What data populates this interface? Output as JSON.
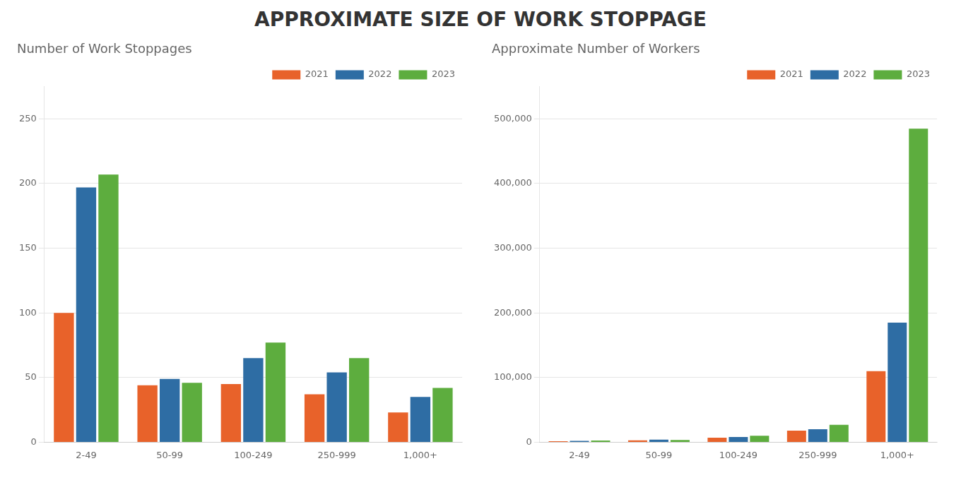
{
  "title": "APPROXIMATE SIZE OF WORK STOPPAGE",
  "chart_data": [
    {
      "type": "bar",
      "subtitle": "Number of Work Stoppages",
      "categories": [
        "2-49",
        "50-99",
        "100-249",
        "250-999",
        "1,000+"
      ],
      "series": [
        {
          "name": "2021",
          "color": "#E8622A",
          "values": [
            100,
            44,
            45,
            37,
            23
          ]
        },
        {
          "name": "2022",
          "color": "#2E6DA4",
          "values": [
            197,
            49,
            65,
            54,
            35
          ]
        },
        {
          "name": "2023",
          "color": "#5DAD3E",
          "values": [
            207,
            46,
            77,
            65,
            42
          ]
        }
      ],
      "ylim": [
        0,
        275
      ],
      "yticks": [
        0,
        50,
        100,
        150,
        200,
        250
      ],
      "grid": true,
      "legend": "upper right"
    },
    {
      "type": "bar",
      "subtitle": "Approximate Number of Workers",
      "categories": [
        "2-49",
        "50-99",
        "100-249",
        "250-999",
        "1,000+"
      ],
      "series": [
        {
          "name": "2021",
          "color": "#E8622A",
          "values": [
            1500,
            3000,
            7000,
            18000,
            110000
          ]
        },
        {
          "name": "2022",
          "color": "#2E6DA4",
          "values": [
            2000,
            4000,
            8000,
            20000,
            185000
          ]
        },
        {
          "name": "2023",
          "color": "#5DAD3E",
          "values": [
            2500,
            3500,
            10000,
            27000,
            485000
          ]
        }
      ],
      "ylim": [
        0,
        550000
      ],
      "yticks": [
        0,
        {
          "value": 100000,
          "label": "100,000"
        },
        {
          "value": 200000,
          "label": "200,000"
        },
        {
          "value": 300000,
          "label": "300,000"
        },
        {
          "value": 400000,
          "label": "400,000"
        },
        {
          "value": 500000,
          "label": "500,000"
        }
      ],
      "grid": true,
      "legend": "upper right"
    }
  ]
}
